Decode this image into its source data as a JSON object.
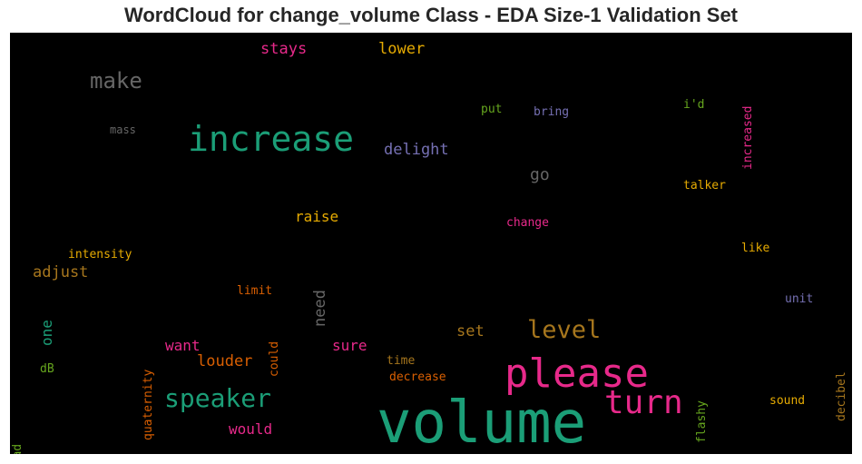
{
  "title": "WordCloud for change_volume Class - EDA Size-1 Validation Set",
  "chart_data": {
    "type": "wordcloud",
    "title": "WordCloud for change_volume Class - EDA Size-1 Validation Set",
    "background": "#000000",
    "palette": [
      "#1b9e77",
      "#d95f02",
      "#7570b3",
      "#e7298a",
      "#66a61e",
      "#e6ab02",
      "#a6761d",
      "#666666"
    ],
    "words": [
      {
        "text": "volume",
        "color": "#1b9e77"
      },
      {
        "text": "please",
        "color": "#e7298a"
      },
      {
        "text": "increase",
        "color": "#1b9e77"
      },
      {
        "text": "turn",
        "color": "#e7298a"
      },
      {
        "text": "speaker",
        "color": "#1b9e77"
      },
      {
        "text": "level",
        "color": "#a6761d"
      },
      {
        "text": "make",
        "color": "#666666"
      },
      {
        "text": "delight",
        "color": "#7570b3"
      },
      {
        "text": "raise",
        "color": "#e6ab02"
      },
      {
        "text": "go",
        "color": "#666666"
      },
      {
        "text": "stays",
        "color": "#e7298a"
      },
      {
        "text": "lower",
        "color": "#e6ab02"
      },
      {
        "text": "need",
        "color": "#666666"
      },
      {
        "text": "adjust",
        "color": "#a6761d"
      },
      {
        "text": "louder",
        "color": "#d95f02"
      },
      {
        "text": "want",
        "color": "#e7298a"
      },
      {
        "text": "sure",
        "color": "#e7298a"
      },
      {
        "text": "set",
        "color": "#a6761d"
      },
      {
        "text": "would",
        "color": "#e7298a"
      },
      {
        "text": "one",
        "color": "#1b9e77"
      },
      {
        "text": "increased",
        "color": "#e7298a"
      },
      {
        "text": "intensity",
        "color": "#e6ab02"
      },
      {
        "text": "quaternity",
        "color": "#d95f02"
      },
      {
        "text": "decibel",
        "color": "#a6761d"
      },
      {
        "text": "flashy",
        "color": "#66a61e"
      },
      {
        "text": "could",
        "color": "#d95f02"
      },
      {
        "text": "mass",
        "color": "#666666"
      },
      {
        "text": "put",
        "color": "#66a61e"
      },
      {
        "text": "bring",
        "color": "#7570b3"
      },
      {
        "text": "i'd",
        "color": "#66a61e"
      },
      {
        "text": "talker",
        "color": "#e6ab02"
      },
      {
        "text": "change",
        "color": "#e7298a"
      },
      {
        "text": "like",
        "color": "#e6ab02"
      },
      {
        "text": "limit",
        "color": "#d95f02"
      },
      {
        "text": "unit",
        "color": "#7570b3"
      },
      {
        "text": "time",
        "color": "#a6761d"
      },
      {
        "text": "decrease",
        "color": "#d95f02"
      },
      {
        "text": "sound",
        "color": "#e6ab02"
      },
      {
        "text": "dB",
        "color": "#66a61e"
      },
      {
        "text": "ahead",
        "color": "#66a61e"
      }
    ]
  }
}
